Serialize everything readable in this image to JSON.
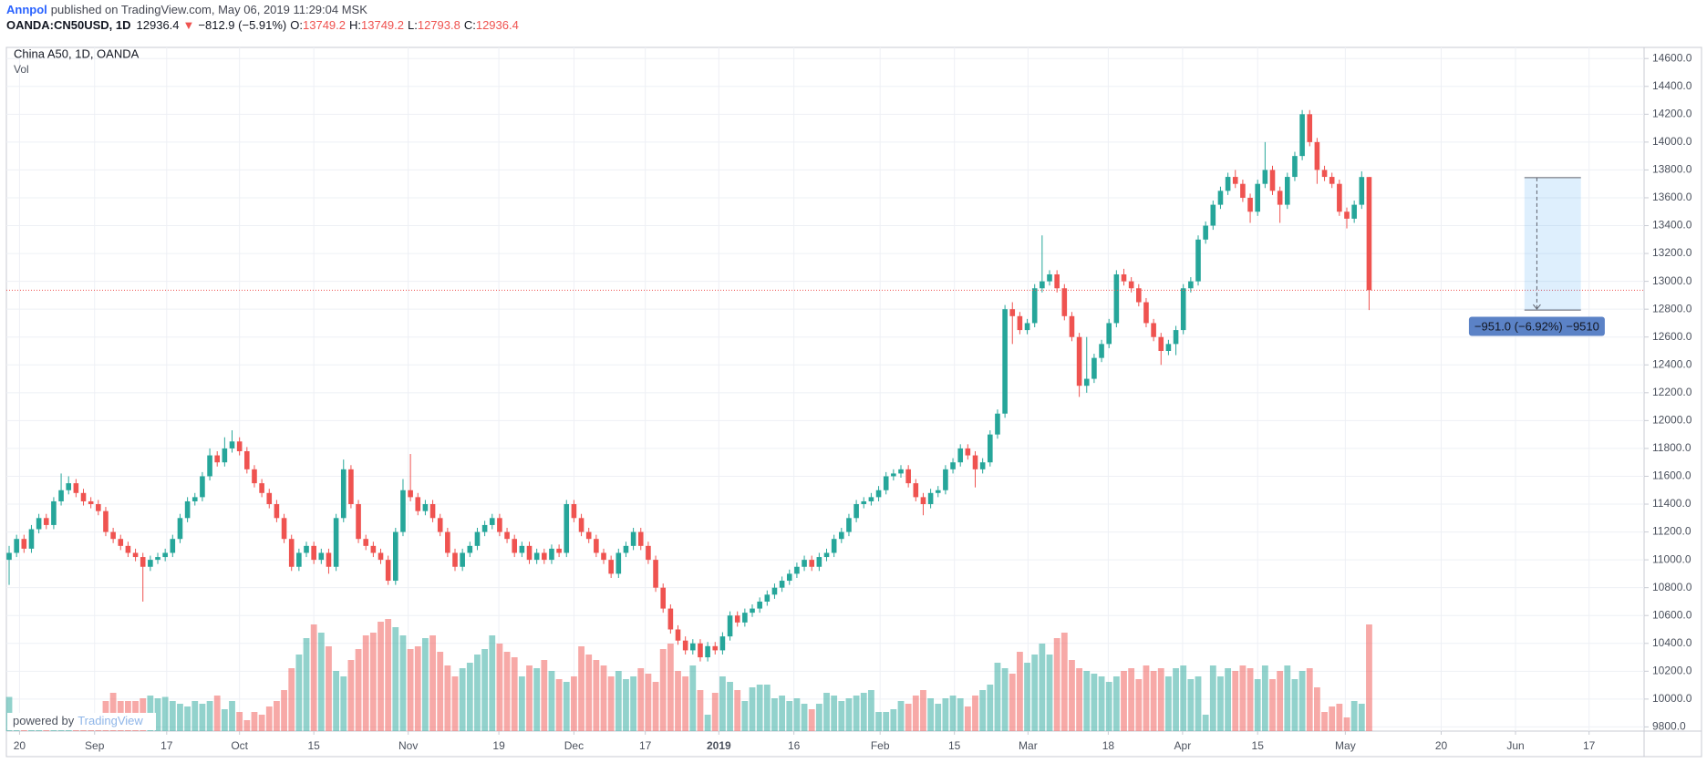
{
  "header": {
    "author": "Annpol",
    "published": "published on TradingView.com, May 06, 2019 11:29:04 MSK",
    "symbol": "OANDA:CN50USD, 1D",
    "change_arrow": "▼",
    "change": "−812.9 (−5.91%)",
    "ohlc_labels": [
      "O:",
      "H:",
      "L:",
      "C:"
    ]
  },
  "watermark": {
    "prefix": "powered by",
    "brand": "TradingView"
  },
  "chart_data": {
    "type": "candlestick",
    "title": "China A50, 1D, OANDA",
    "volume_label": "Vol",
    "up_color": "#26a69a",
    "down_color": "#ef5350",
    "grid": true,
    "xlim": [
      -0.37,
      220
    ],
    "ylim": [
      9770,
      14680
    ],
    "vlim": [
      0,
      100
    ],
    "yticks": [
      {
        "value": 9800,
        "label": "9800.0"
      },
      {
        "value": 10000,
        "label": "10000.0"
      },
      {
        "value": 10200,
        "label": "10200.0"
      },
      {
        "value": 10400,
        "label": "10400.0"
      },
      {
        "value": 10600,
        "label": "10600.0"
      },
      {
        "value": 10800,
        "label": "10800.0"
      },
      {
        "value": 11000,
        "label": "11000.0"
      },
      {
        "value": 11200,
        "label": "11200.0"
      },
      {
        "value": 11400,
        "label": "11400.0"
      },
      {
        "value": 11600,
        "label": "11600.0"
      },
      {
        "value": 11800,
        "label": "11800.0"
      },
      {
        "value": 12000,
        "label": "12000.0"
      },
      {
        "value": 12200,
        "label": "12200.0"
      },
      {
        "value": 12400,
        "label": "12400.0"
      },
      {
        "value": 12600,
        "label": "12600.0"
      },
      {
        "value": 12800,
        "label": "12800.0"
      },
      {
        "value": 13000,
        "label": "13000.0"
      },
      {
        "value": 13200,
        "label": "13200.0"
      },
      {
        "value": 13400,
        "label": "13400.0"
      },
      {
        "value": 13600,
        "label": "13600.0"
      },
      {
        "value": 13800,
        "label": "13800.0"
      },
      {
        "value": 14000,
        "label": "14000.0"
      },
      {
        "value": 14200,
        "label": "14200.0"
      },
      {
        "value": 14400,
        "label": "14400.0"
      },
      {
        "value": 14600,
        "label": "14600.0"
      }
    ],
    "xticks": [
      {
        "value": 1.4,
        "label": "20"
      },
      {
        "value": 11.5,
        "label": "Sep"
      },
      {
        "value": 21.2,
        "label": "17"
      },
      {
        "value": 31,
        "label": "Oct"
      },
      {
        "value": 41,
        "label": "15"
      },
      {
        "value": 53.7,
        "label": "Nov"
      },
      {
        "value": 65.9,
        "label": "19"
      },
      {
        "value": 76,
        "label": "Dec"
      },
      {
        "value": 85.6,
        "label": "17"
      },
      {
        "value": 95.5,
        "label": "2019",
        "bold": true
      },
      {
        "value": 105.6,
        "label": "16"
      },
      {
        "value": 117.2,
        "label": "Feb"
      },
      {
        "value": 127.2,
        "label": "15"
      },
      {
        "value": 137.1,
        "label": "Mar"
      },
      {
        "value": 147.9,
        "label": "18"
      },
      {
        "value": 157.9,
        "label": "Apr"
      },
      {
        "value": 168,
        "label": "15"
      },
      {
        "value": 179.8,
        "label": "May"
      },
      {
        "value": 192.7,
        "label": "20"
      },
      {
        "value": 202.7,
        "label": "Jun"
      },
      {
        "value": 212.6,
        "label": "17"
      }
    ],
    "candles": [
      [
        11000,
        11100,
        10820,
        11050
      ],
      [
        11050,
        11180,
        11020,
        11150
      ],
      [
        11150,
        11180,
        11050,
        11080
      ],
      [
        11080,
        11250,
        11050,
        11220
      ],
      [
        11220,
        11330,
        11190,
        11300
      ],
      [
        11300,
        11330,
        11220,
        11250
      ],
      [
        11250,
        11450,
        11220,
        11420
      ],
      [
        11420,
        11620,
        11390,
        11500
      ],
      [
        11500,
        11600,
        11470,
        11550
      ],
      [
        11550,
        11580,
        11450,
        11480
      ],
      [
        11480,
        11510,
        11390,
        11420
      ],
      [
        11420,
        11450,
        11370,
        11400
      ],
      [
        11400,
        11430,
        11320,
        11350
      ],
      [
        11350,
        11380,
        11170,
        11200
      ],
      [
        11200,
        11230,
        11120,
        11150
      ],
      [
        11150,
        11180,
        11070,
        11100
      ],
      [
        11100,
        11130,
        11020,
        11050
      ],
      [
        11050,
        11080,
        10990,
        11020
      ],
      [
        11020,
        11050,
        10700,
        10950
      ],
      [
        10950,
        11030,
        10920,
        11000
      ],
      [
        11000,
        11050,
        10970,
        11020
      ],
      [
        11020,
        11080,
        10990,
        11050
      ],
      [
        11050,
        11180,
        11020,
        11150
      ],
      [
        11150,
        11330,
        11120,
        11300
      ],
      [
        11300,
        11450,
        11270,
        11420
      ],
      [
        11420,
        11480,
        11390,
        11450
      ],
      [
        11450,
        11630,
        11420,
        11600
      ],
      [
        11600,
        11800,
        11570,
        11750
      ],
      [
        11750,
        11780,
        11670,
        11700
      ],
      [
        11700,
        11880,
        11670,
        11800
      ],
      [
        11800,
        11930,
        11770,
        11850
      ],
      [
        11850,
        11880,
        11750,
        11780
      ],
      [
        11780,
        11810,
        11620,
        11650
      ],
      [
        11650,
        11680,
        11520,
        11550
      ],
      [
        11550,
        11580,
        11450,
        11480
      ],
      [
        11480,
        11510,
        11370,
        11400
      ],
      [
        11400,
        11430,
        11270,
        11300
      ],
      [
        11300,
        11330,
        11120,
        11150
      ],
      [
        11150,
        11180,
        10920,
        10950
      ],
      [
        10950,
        11080,
        10920,
        11050
      ],
      [
        11050,
        11130,
        11020,
        11100
      ],
      [
        11100,
        11130,
        10970,
        11000
      ],
      [
        11000,
        11080,
        10970,
        11050
      ],
      [
        11050,
        11080,
        10900,
        10950
      ],
      [
        10950,
        11330,
        10920,
        11300
      ],
      [
        11300,
        11720,
        11270,
        11650
      ],
      [
        11650,
        11680,
        11370,
        11400
      ],
      [
        11400,
        11430,
        11120,
        11150
      ],
      [
        11150,
        11180,
        11070,
        11100
      ],
      [
        11100,
        11130,
        11020,
        11050
      ],
      [
        11050,
        11080,
        10970,
        11000
      ],
      [
        11000,
        11030,
        10820,
        10850
      ],
      [
        10850,
        11230,
        10820,
        11200
      ],
      [
        11200,
        11580,
        11170,
        11500
      ],
      [
        11500,
        11760,
        11420,
        11450
      ],
      [
        11450,
        11480,
        11320,
        11350
      ],
      [
        11350,
        11430,
        11320,
        11400
      ],
      [
        11400,
        11430,
        11270,
        11300
      ],
      [
        11300,
        11330,
        11170,
        11200
      ],
      [
        11200,
        11230,
        11020,
        11050
      ],
      [
        11050,
        11080,
        10920,
        10950
      ],
      [
        10950,
        11080,
        10920,
        11050
      ],
      [
        11050,
        11130,
        11020,
        11100
      ],
      [
        11100,
        11230,
        11070,
        11200
      ],
      [
        11200,
        11280,
        11170,
        11250
      ],
      [
        11250,
        11330,
        11220,
        11300
      ],
      [
        11300,
        11330,
        11170,
        11200
      ],
      [
        11200,
        11230,
        11120,
        11150
      ],
      [
        11150,
        11180,
        11020,
        11050
      ],
      [
        11050,
        11130,
        11020,
        11100
      ],
      [
        11100,
        11130,
        10970,
        11000
      ],
      [
        11000,
        11080,
        10970,
        11050
      ],
      [
        11050,
        11080,
        10970,
        11000
      ],
      [
        11000,
        11110,
        10970,
        11080
      ],
      [
        11080,
        11110,
        11020,
        11050
      ],
      [
        11050,
        11430,
        11020,
        11400
      ],
      [
        11400,
        11430,
        11270,
        11300
      ],
      [
        11300,
        11330,
        11170,
        11200
      ],
      [
        11200,
        11230,
        11120,
        11150
      ],
      [
        11150,
        11180,
        11020,
        11050
      ],
      [
        11050,
        11080,
        10970,
        11000
      ],
      [
        11000,
        11030,
        10870,
        10900
      ],
      [
        10900,
        11080,
        10870,
        11050
      ],
      [
        11050,
        11130,
        11020,
        11100
      ],
      [
        11100,
        11230,
        11070,
        11200
      ],
      [
        11200,
        11230,
        11070,
        11100
      ],
      [
        11100,
        11130,
        10970,
        11000
      ],
      [
        11000,
        11030,
        10770,
        10800
      ],
      [
        10800,
        10830,
        10620,
        10650
      ],
      [
        10650,
        10680,
        10470,
        10500
      ],
      [
        10500,
        10530,
        10390,
        10420
      ],
      [
        10420,
        10450,
        10320,
        10350
      ],
      [
        10350,
        10430,
        10320,
        10400
      ],
      [
        10400,
        10430,
        10270,
        10300
      ],
      [
        10300,
        10410,
        10270,
        10380
      ],
      [
        10380,
        10410,
        10320,
        10350
      ],
      [
        10350,
        10480,
        10320,
        10450
      ],
      [
        10450,
        10630,
        10420,
        10600
      ],
      [
        10600,
        10630,
        10520,
        10550
      ],
      [
        10550,
        10650,
        10520,
        10620
      ],
      [
        10620,
        10680,
        10590,
        10650
      ],
      [
        10650,
        10730,
        10620,
        10700
      ],
      [
        10700,
        10780,
        10670,
        10750
      ],
      [
        10750,
        10830,
        10720,
        10800
      ],
      [
        10800,
        10880,
        10770,
        10850
      ],
      [
        10850,
        10930,
        10820,
        10900
      ],
      [
        10900,
        10980,
        10870,
        10950
      ],
      [
        10950,
        11030,
        10920,
        11000
      ],
      [
        11000,
        11030,
        10920,
        10950
      ],
      [
        10950,
        11050,
        10920,
        11020
      ],
      [
        11020,
        11080,
        10990,
        11050
      ],
      [
        11050,
        11180,
        11020,
        11150
      ],
      [
        11150,
        11230,
        11120,
        11200
      ],
      [
        11200,
        11330,
        11170,
        11300
      ],
      [
        11300,
        11430,
        11270,
        11400
      ],
      [
        11400,
        11450,
        11370,
        11420
      ],
      [
        11420,
        11480,
        11390,
        11450
      ],
      [
        11450,
        11530,
        11420,
        11500
      ],
      [
        11500,
        11630,
        11470,
        11600
      ],
      [
        11600,
        11650,
        11570,
        11620
      ],
      [
        11620,
        11680,
        11590,
        11650
      ],
      [
        11650,
        11680,
        11520,
        11550
      ],
      [
        11550,
        11580,
        11420,
        11450
      ],
      [
        11450,
        11480,
        11320,
        11400
      ],
      [
        11400,
        11510,
        11370,
        11480
      ],
      [
        11480,
        11530,
        11450,
        11500
      ],
      [
        11500,
        11680,
        11470,
        11650
      ],
      [
        11650,
        11730,
        11620,
        11700
      ],
      [
        11700,
        11830,
        11670,
        11800
      ],
      [
        11800,
        11830,
        11720,
        11750
      ],
      [
        11750,
        11780,
        11520,
        11650
      ],
      [
        11650,
        11730,
        11620,
        11700
      ],
      [
        11700,
        11930,
        11670,
        11900
      ],
      [
        11900,
        12080,
        11870,
        12050
      ],
      [
        12050,
        12830,
        12020,
        12800
      ],
      [
        12800,
        12850,
        12550,
        12750
      ],
      [
        12750,
        12780,
        12620,
        12650
      ],
      [
        12650,
        12730,
        12620,
        12700
      ],
      [
        12700,
        12980,
        12670,
        12950
      ],
      [
        12950,
        13330,
        12920,
        13000
      ],
      [
        13000,
        13080,
        12970,
        13050
      ],
      [
        13050,
        13080,
        12920,
        12950
      ],
      [
        12950,
        12980,
        12720,
        12750
      ],
      [
        12750,
        12780,
        12570,
        12600
      ],
      [
        12600,
        12630,
        12170,
        12250
      ],
      [
        12250,
        12600,
        12200,
        12300
      ],
      [
        12300,
        12480,
        12270,
        12450
      ],
      [
        12450,
        12580,
        12420,
        12550
      ],
      [
        12550,
        12730,
        12520,
        12700
      ],
      [
        12700,
        13080,
        12670,
        13050
      ],
      [
        13050,
        13090,
        12970,
        13000
      ],
      [
        13000,
        13030,
        12920,
        12950
      ],
      [
        12950,
        12980,
        12820,
        12850
      ],
      [
        12850,
        12880,
        12670,
        12700
      ],
      [
        12700,
        12730,
        12570,
        12600
      ],
      [
        12600,
        12630,
        12400,
        12500
      ],
      [
        12500,
        12580,
        12470,
        12550
      ],
      [
        12550,
        12680,
        12470,
        12650
      ],
      [
        12650,
        12980,
        12620,
        12950
      ],
      [
        12950,
        13030,
        12920,
        13000
      ],
      [
        13000,
        13330,
        12970,
        13300
      ],
      [
        13300,
        13430,
        13270,
        13400
      ],
      [
        13400,
        13580,
        13370,
        13550
      ],
      [
        13550,
        13680,
        13520,
        13650
      ],
      [
        13650,
        13780,
        13620,
        13750
      ],
      [
        13750,
        13800,
        13670,
        13700
      ],
      [
        13700,
        13730,
        13570,
        13600
      ],
      [
        13600,
        13630,
        13420,
        13500
      ],
      [
        13500,
        13730,
        13470,
        13700
      ],
      [
        13700,
        14000,
        13670,
        13800
      ],
      [
        13800,
        13830,
        13620,
        13650
      ],
      [
        13650,
        13680,
        13420,
        13550
      ],
      [
        13550,
        13780,
        13520,
        13750
      ],
      [
        13750,
        13930,
        13720,
        13900
      ],
      [
        13900,
        14230,
        13870,
        14200
      ],
      [
        14200,
        14230,
        13970,
        14000
      ],
      [
        14000,
        14030,
        13700,
        13800
      ],
      [
        13800,
        13830,
        13720,
        13750
      ],
      [
        13750,
        13780,
        13670,
        13700
      ],
      [
        13700,
        13730,
        13470,
        13500
      ],
      [
        13500,
        13530,
        13380,
        13450
      ],
      [
        13450,
        13580,
        13420,
        13550
      ],
      [
        13550,
        13790,
        13520,
        13749.2
      ],
      [
        13749.2,
        13749.2,
        12793.8,
        12936.4
      ]
    ],
    "volume": [
      25,
      10,
      10,
      10,
      10,
      10,
      10,
      10,
      10,
      10,
      10,
      10,
      12,
      22,
      28,
      22,
      22,
      22,
      24,
      26,
      24,
      25,
      22,
      20,
      18,
      22,
      20,
      22,
      26,
      16,
      22,
      14,
      8,
      14,
      12,
      18,
      22,
      30,
      46,
      56,
      68,
      78,
      72,
      62,
      44,
      40,
      52,
      60,
      70,
      72,
      80,
      82,
      76,
      70,
      60,
      62,
      68,
      70,
      58,
      48,
      40,
      46,
      50,
      56,
      60,
      70,
      64,
      58,
      54,
      40,
      48,
      46,
      52,
      44,
      38,
      36,
      40,
      62,
      56,
      52,
      48,
      40,
      44,
      38,
      40,
      46,
      42,
      36,
      60,
      64,
      44,
      40,
      48,
      30,
      12,
      28,
      40,
      36,
      30,
      22,
      32,
      34,
      34,
      24,
      26,
      22,
      24,
      20,
      16,
      20,
      28,
      26,
      22,
      24,
      26,
      28,
      30,
      14,
      14,
      16,
      22,
      20,
      26,
      30,
      24,
      20,
      24,
      26,
      24,
      18,
      26,
      30,
      34,
      50,
      46,
      42,
      58,
      50,
      56,
      64,
      56,
      68,
      72,
      52,
      46,
      44,
      42,
      40,
      36,
      40,
      44,
      46,
      38,
      48,
      44,
      46,
      40,
      46,
      48,
      38,
      40,
      12,
      48,
      40,
      46,
      44,
      48,
      46,
      38,
      48,
      38,
      44,
      48,
      38,
      44,
      46,
      32,
      14,
      18,
      20,
      10,
      22,
      20,
      78
    ],
    "measure": {
      "from": 13744.8,
      "to": 12793.8,
      "start": 203.9,
      "end": 211.5,
      "label": "−951.0 (−6.92%) −9510"
    }
  }
}
